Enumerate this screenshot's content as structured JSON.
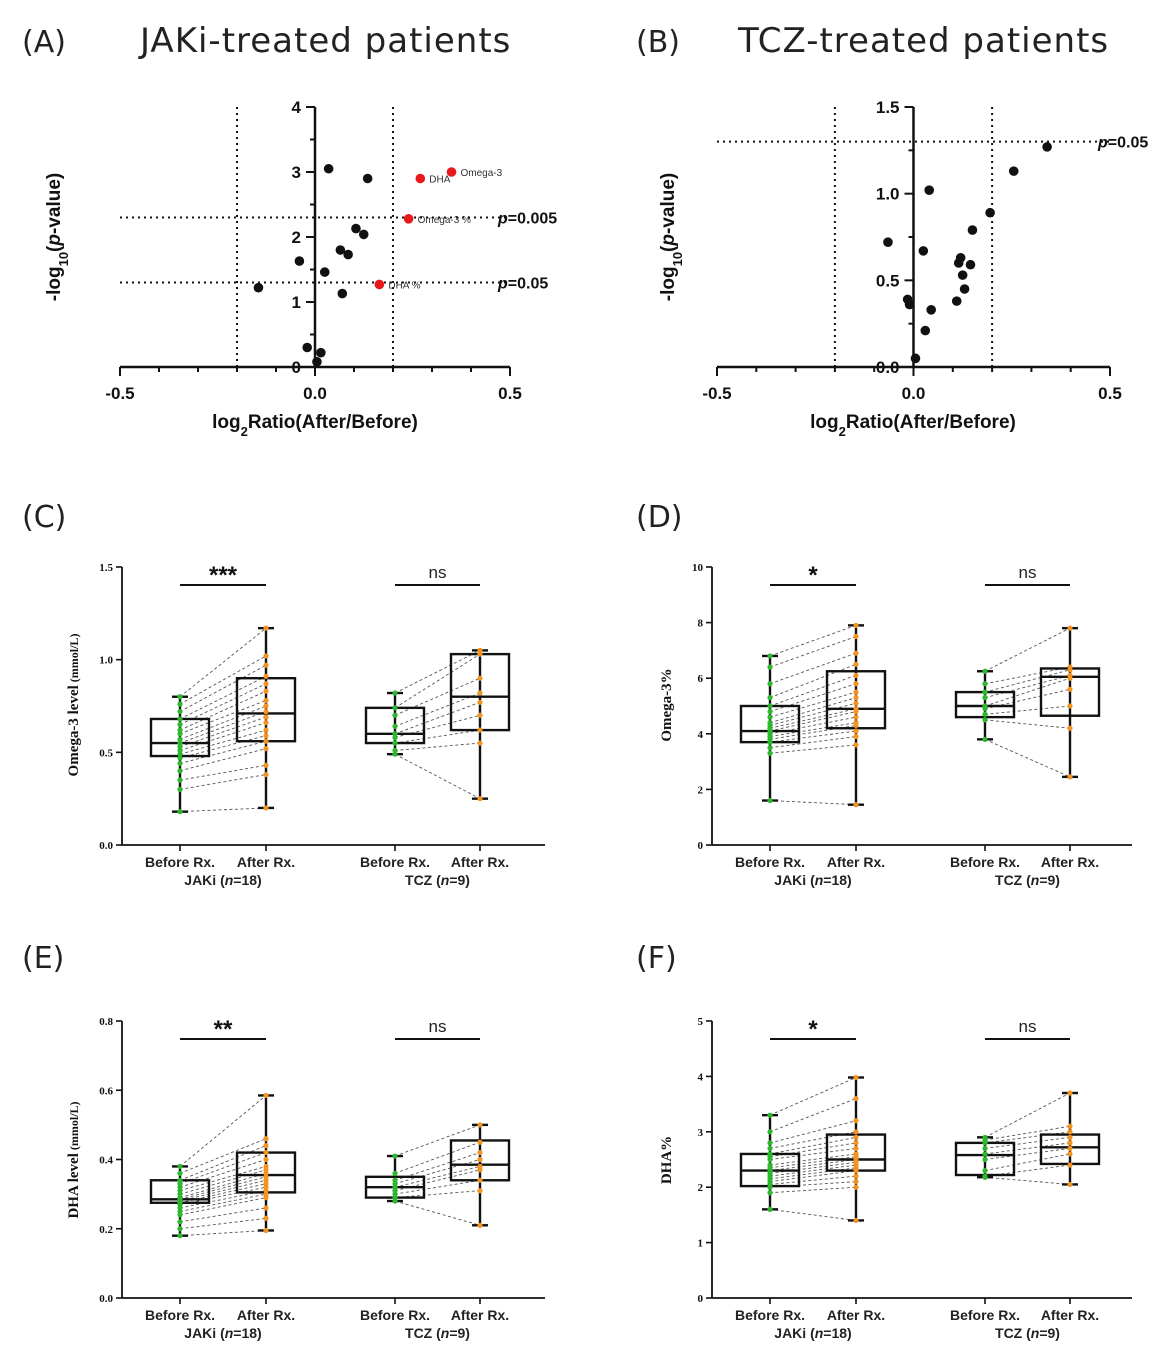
{
  "colors": {
    "black": "#111111",
    "highlight": "#e8181b",
    "before": "#2db82d",
    "after": "#f29422"
  },
  "chart_data": [
    {
      "id": "A",
      "type": "scatter",
      "letter": "(A)",
      "title": "JAKi-treated patients",
      "ylabel_prefix": "-log",
      "ylabel_sub": "10",
      "ylabel_mid": "(",
      "ylabel_italic": "p",
      "ylabel_suffix": "-value)",
      "xlabel_prefix": "log",
      "xlabel_sub": "2",
      "xlabel_suffix": "Ratio(After/Before)",
      "xlim": [
        -0.5,
        0.5
      ],
      "ylim": [
        0,
        4
      ],
      "xticks": [
        -0.5,
        0.0,
        0.5
      ],
      "xtick_labels": [
        "-0.5",
        "0.0",
        "0.5"
      ],
      "yticks": [
        0,
        1,
        2,
        3,
        4
      ],
      "ytick_labels": [
        "0",
        "1",
        "2",
        "3",
        "4"
      ],
      "vlines": [
        -0.2,
        0.2
      ],
      "hlines": [
        {
          "y": 2.3,
          "italic": "p",
          "rest": "=0.005"
        },
        {
          "y": 1.3,
          "italic": "p",
          "rest": "=0.05"
        }
      ],
      "points": [
        {
          "x": 0.035,
          "y": 3.05
        },
        {
          "x": 0.135,
          "y": 2.9
        },
        {
          "x": 0.105,
          "y": 2.13
        },
        {
          "x": 0.125,
          "y": 2.04
        },
        {
          "x": 0.065,
          "y": 1.8
        },
        {
          "x": 0.085,
          "y": 1.73
        },
        {
          "x": -0.04,
          "y": 1.63
        },
        {
          "x": 0.025,
          "y": 1.46
        },
        {
          "x": -0.145,
          "y": 1.22
        },
        {
          "x": 0.07,
          "y": 1.13
        },
        {
          "x": -0.02,
          "y": 0.3
        },
        {
          "x": 0.015,
          "y": 0.22
        },
        {
          "x": 0.005,
          "y": 0.08
        }
      ],
      "highlight_points": [
        {
          "x": 0.27,
          "y": 2.9,
          "label": "DHA"
        },
        {
          "x": 0.35,
          "y": 3.0,
          "label": "Omega-3"
        },
        {
          "x": 0.24,
          "y": 2.28,
          "label": "Omega-3 %"
        },
        {
          "x": 0.165,
          "y": 1.27,
          "label": "DHA %"
        }
      ]
    },
    {
      "id": "B",
      "type": "scatter",
      "letter": "(B)",
      "title": "TCZ-treated patients",
      "ylabel_prefix": "-log",
      "ylabel_sub": "10",
      "ylabel_mid": "(",
      "ylabel_italic": "p",
      "ylabel_suffix": "-value)",
      "xlabel_prefix": "log",
      "xlabel_sub": "2",
      "xlabel_suffix": "Ratio(After/Before)",
      "xlim": [
        -0.5,
        0.5
      ],
      "ylim": [
        0,
        1.5
      ],
      "xticks": [
        -0.5,
        0.0,
        0.5
      ],
      "xtick_labels": [
        "-0.5",
        "0.0",
        "0.5"
      ],
      "yticks": [
        0,
        0.5,
        1.0,
        1.5
      ],
      "ytick_labels": [
        "0.0",
        "0.5",
        "1.0",
        "1.5"
      ],
      "vlines": [
        -0.2,
        0.2
      ],
      "hlines": [
        {
          "y": 1.3,
          "italic": "p",
          "rest": "=0.05"
        }
      ],
      "points": [
        {
          "x": 0.34,
          "y": 1.27
        },
        {
          "x": 0.255,
          "y": 1.13
        },
        {
          "x": 0.195,
          "y": 0.89
        },
        {
          "x": 0.04,
          "y": 1.02
        },
        {
          "x": 0.15,
          "y": 0.79
        },
        {
          "x": -0.065,
          "y": 0.72
        },
        {
          "x": 0.025,
          "y": 0.67
        },
        {
          "x": 0.12,
          "y": 0.63
        },
        {
          "x": 0.115,
          "y": 0.6
        },
        {
          "x": 0.145,
          "y": 0.59
        },
        {
          "x": 0.125,
          "y": 0.53
        },
        {
          "x": 0.13,
          "y": 0.45
        },
        {
          "x": -0.015,
          "y": 0.39
        },
        {
          "x": -0.01,
          "y": 0.36
        },
        {
          "x": 0.11,
          "y": 0.38
        },
        {
          "x": 0.045,
          "y": 0.33
        },
        {
          "x": 0.03,
          "y": 0.21
        },
        {
          "x": 0.005,
          "y": 0.05
        }
      ]
    },
    {
      "id": "C",
      "type": "box",
      "letter": "(C)",
      "ylabel_prefix": "Omega-3 level",
      "ylabel_unit": " (mmol/L)",
      "ylim": [
        0,
        1.5
      ],
      "yticks": [
        0,
        0.5,
        1.0,
        1.5
      ],
      "ytick_labels": [
        "0.0",
        "0.5",
        "1.0",
        "1.5"
      ],
      "categories": [
        "Before Rx.",
        "After Rx.",
        "Before Rx.",
        "After Rx."
      ],
      "groups": [
        {
          "pre": "JAKi (",
          "italic": "n",
          "post": "=18)"
        },
        {
          "pre": "TCZ (",
          "italic": "n",
          "post": "=9)"
        }
      ],
      "significance": [
        "***",
        "ns"
      ],
      "boxes": [
        {
          "min": 0.18,
          "q1": 0.48,
          "median": 0.55,
          "q3": 0.68,
          "max": 0.8
        },
        {
          "min": 0.2,
          "q1": 0.56,
          "median": 0.71,
          "q3": 0.9,
          "max": 1.17
        },
        {
          "min": 0.49,
          "q1": 0.55,
          "median": 0.6,
          "q3": 0.74,
          "max": 0.82
        },
        {
          "min": 0.25,
          "q1": 0.62,
          "median": 0.8,
          "q3": 1.03,
          "max": 1.05
        }
      ],
      "pairs": [
        [
          [
            0.18,
            0.2
          ],
          [
            0.3,
            0.38
          ],
          [
            0.35,
            0.43
          ],
          [
            0.4,
            0.52
          ],
          [
            0.44,
            0.56
          ],
          [
            0.47,
            0.59
          ],
          [
            0.49,
            0.62
          ],
          [
            0.51,
            0.66
          ],
          [
            0.53,
            0.69
          ],
          [
            0.55,
            0.72
          ],
          [
            0.57,
            0.75
          ],
          [
            0.6,
            0.78
          ],
          [
            0.62,
            0.83
          ],
          [
            0.65,
            0.87
          ],
          [
            0.68,
            0.91
          ],
          [
            0.72,
            0.97
          ],
          [
            0.76,
            1.02
          ],
          [
            0.8,
            1.17
          ]
        ],
        [
          [
            0.49,
            0.25
          ],
          [
            0.51,
            0.55
          ],
          [
            0.55,
            0.62
          ],
          [
            0.58,
            0.7
          ],
          [
            0.6,
            0.77
          ],
          [
            0.64,
            0.82
          ],
          [
            0.7,
            0.9
          ],
          [
            0.74,
            1.03
          ],
          [
            0.82,
            1.05
          ]
        ]
      ]
    },
    {
      "id": "D",
      "type": "box",
      "letter": "(D)",
      "ylabel_prefix": "Omega-3%",
      "ylabel_unit": "",
      "ylim": [
        0,
        10
      ],
      "yticks": [
        0,
        2,
        4,
        6,
        8,
        10
      ],
      "ytick_labels": [
        "0",
        "2",
        "4",
        "6",
        "8",
        "10"
      ],
      "categories": [
        "Before Rx.",
        "After Rx.",
        "Before Rx.",
        "After Rx."
      ],
      "groups": [
        {
          "pre": "JAKi (",
          "italic": "n",
          "post": "=18)"
        },
        {
          "pre": "TCZ (",
          "italic": "n",
          "post": "=9)"
        }
      ],
      "significance": [
        "*",
        "ns"
      ],
      "boxes": [
        {
          "min": 1.6,
          "q1": 3.7,
          "median": 4.1,
          "q3": 5.0,
          "max": 6.8
        },
        {
          "min": 1.45,
          "q1": 4.2,
          "median": 4.9,
          "q3": 6.25,
          "max": 7.9
        },
        {
          "min": 3.8,
          "q1": 4.6,
          "median": 5.0,
          "q3": 5.5,
          "max": 6.25
        },
        {
          "min": 2.45,
          "q1": 4.65,
          "median": 6.05,
          "q3": 6.35,
          "max": 7.8
        }
      ],
      "pairs": [
        [
          [
            1.6,
            1.45
          ],
          [
            3.3,
            3.6
          ],
          [
            3.5,
            3.9
          ],
          [
            3.7,
            4.1
          ],
          [
            3.8,
            4.3
          ],
          [
            3.9,
            4.4
          ],
          [
            4.0,
            4.6
          ],
          [
            4.1,
            4.8
          ],
          [
            4.2,
            4.9
          ],
          [
            4.3,
            5.1
          ],
          [
            4.4,
            5.3
          ],
          [
            4.6,
            5.5
          ],
          [
            4.8,
            5.8
          ],
          [
            5.0,
            6.1
          ],
          [
            5.3,
            6.5
          ],
          [
            5.8,
            6.9
          ],
          [
            6.4,
            7.5
          ],
          [
            6.8,
            7.9
          ]
        ],
        [
          [
            3.8,
            2.45
          ],
          [
            4.5,
            4.2
          ],
          [
            4.7,
            5.0
          ],
          [
            4.9,
            5.6
          ],
          [
            5.0,
            6.0
          ],
          [
            5.3,
            6.1
          ],
          [
            5.5,
            6.3
          ],
          [
            5.8,
            6.4
          ],
          [
            6.25,
            7.8
          ]
        ]
      ]
    },
    {
      "id": "E",
      "type": "box",
      "letter": "(E)",
      "ylabel_prefix": "DHA level",
      "ylabel_unit": " (mmol/L)",
      "ylim": [
        0,
        0.8
      ],
      "yticks": [
        0,
        0.2,
        0.4,
        0.6,
        0.8
      ],
      "ytick_labels": [
        "0.0",
        "0.2",
        "0.4",
        "0.6",
        "0.8"
      ],
      "categories": [
        "Before Rx.",
        "After Rx.",
        "Before Rx.",
        "After Rx."
      ],
      "groups": [
        {
          "pre": "JAKi (",
          "italic": "n",
          "post": "=18)"
        },
        {
          "pre": "TCZ (",
          "italic": "n",
          "post": "=9)"
        }
      ],
      "significance": [
        "**",
        "ns"
      ],
      "boxes": [
        {
          "min": 0.18,
          "q1": 0.275,
          "median": 0.285,
          "q3": 0.34,
          "max": 0.38
        },
        {
          "min": 0.195,
          "q1": 0.305,
          "median": 0.355,
          "q3": 0.42,
          "max": 0.585
        },
        {
          "min": 0.28,
          "q1": 0.29,
          "median": 0.32,
          "q3": 0.35,
          "max": 0.41
        },
        {
          "min": 0.21,
          "q1": 0.34,
          "median": 0.385,
          "q3": 0.455,
          "max": 0.5
        }
      ],
      "pairs": [
        [
          [
            0.18,
            0.195
          ],
          [
            0.2,
            0.23
          ],
          [
            0.22,
            0.26
          ],
          [
            0.24,
            0.29
          ],
          [
            0.25,
            0.3
          ],
          [
            0.26,
            0.31
          ],
          [
            0.27,
            0.32
          ],
          [
            0.275,
            0.33
          ],
          [
            0.28,
            0.34
          ],
          [
            0.285,
            0.35
          ],
          [
            0.29,
            0.36
          ],
          [
            0.3,
            0.37
          ],
          [
            0.31,
            0.38
          ],
          [
            0.32,
            0.4
          ],
          [
            0.33,
            0.42
          ],
          [
            0.34,
            0.44
          ],
          [
            0.36,
            0.46
          ],
          [
            0.38,
            0.585
          ]
        ],
        [
          [
            0.28,
            0.21
          ],
          [
            0.29,
            0.31
          ],
          [
            0.3,
            0.34
          ],
          [
            0.31,
            0.37
          ],
          [
            0.32,
            0.38
          ],
          [
            0.33,
            0.4
          ],
          [
            0.34,
            0.42
          ],
          [
            0.36,
            0.45
          ],
          [
            0.41,
            0.5
          ]
        ]
      ]
    },
    {
      "id": "F",
      "type": "box",
      "letter": "(F)",
      "ylabel_prefix": "DHA%",
      "ylabel_unit": "",
      "ylim": [
        0,
        5
      ],
      "yticks": [
        0,
        1,
        2,
        3,
        4,
        5
      ],
      "ytick_labels": [
        "0",
        "1",
        "2",
        "3",
        "4",
        "5"
      ],
      "categories": [
        "Before Rx.",
        "After Rx.",
        "Before Rx.",
        "After Rx."
      ],
      "groups": [
        {
          "pre": "JAKi (",
          "italic": "n",
          "post": "=18)"
        },
        {
          "pre": "TCZ (",
          "italic": "n",
          "post": "=9)"
        }
      ],
      "significance": [
        "*",
        "ns"
      ],
      "boxes": [
        {
          "min": 1.6,
          "q1": 2.02,
          "median": 2.3,
          "q3": 2.6,
          "max": 3.3
        },
        {
          "min": 1.4,
          "q1": 2.3,
          "median": 2.5,
          "q3": 2.95,
          "max": 3.98
        },
        {
          "min": 2.18,
          "q1": 2.22,
          "median": 2.58,
          "q3": 2.8,
          "max": 2.9
        },
        {
          "min": 2.05,
          "q1": 2.42,
          "median": 2.72,
          "q3": 2.95,
          "max": 3.7
        }
      ],
      "pairs": [
        [
          [
            1.6,
            1.4
          ],
          [
            1.9,
            2.0
          ],
          [
            2.0,
            2.1
          ],
          [
            2.05,
            2.2
          ],
          [
            2.1,
            2.3
          ],
          [
            2.15,
            2.35
          ],
          [
            2.2,
            2.4
          ],
          [
            2.25,
            2.45
          ],
          [
            2.3,
            2.5
          ],
          [
            2.35,
            2.55
          ],
          [
            2.4,
            2.6
          ],
          [
            2.5,
            2.7
          ],
          [
            2.55,
            2.8
          ],
          [
            2.6,
            2.9
          ],
          [
            2.7,
            3.0
          ],
          [
            2.8,
            3.2
          ],
          [
            3.0,
            3.6
          ],
          [
            3.3,
            3.98
          ]
        ],
        [
          [
            2.18,
            2.05
          ],
          [
            2.2,
            2.4
          ],
          [
            2.3,
            2.6
          ],
          [
            2.5,
            2.7
          ],
          [
            2.6,
            2.8
          ],
          [
            2.7,
            2.9
          ],
          [
            2.8,
            3.0
          ],
          [
            2.85,
            3.1
          ],
          [
            2.9,
            3.7
          ]
        ]
      ]
    }
  ]
}
